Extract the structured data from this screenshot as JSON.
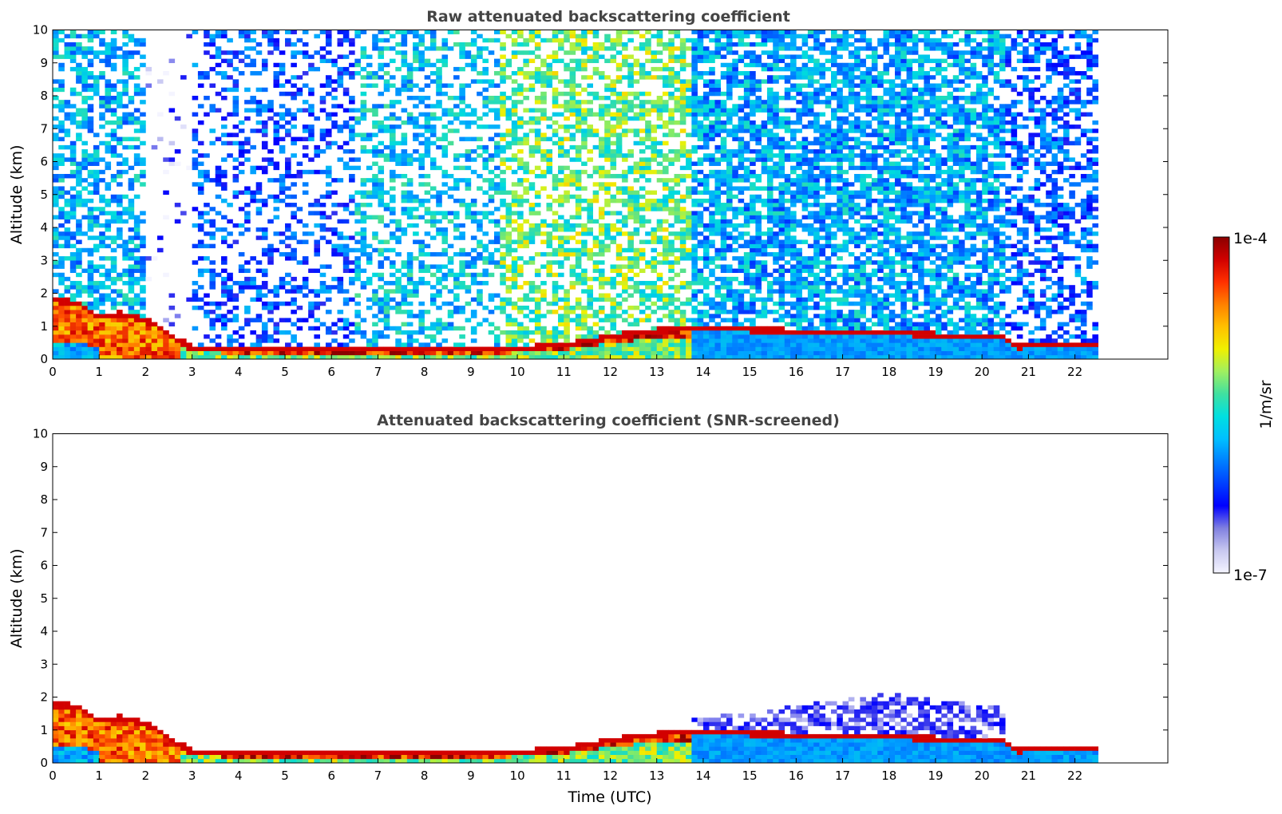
{
  "chart_data": [
    {
      "type": "heatmap",
      "title": "Raw attenuated backscattering coefficient",
      "xlabel": "",
      "ylabel": "Altitude (km)",
      "xlim": [
        0,
        24
      ],
      "ylim": [
        0,
        10
      ],
      "x_ticks": [
        "0",
        "1",
        "2",
        "3",
        "4",
        "5",
        "6",
        "7",
        "8",
        "9",
        "10",
        "11",
        "12",
        "13",
        "14",
        "15",
        "16",
        "17",
        "18",
        "19",
        "20",
        "21",
        "22"
      ],
      "y_ticks": [
        "0",
        "1",
        "2",
        "3",
        "4",
        "5",
        "6",
        "7",
        "8",
        "9",
        "10"
      ],
      "data_time_range": [
        0,
        22.5
      ],
      "boundary_layer_top_km": [
        {
          "t": 0.0,
          "z": 1.7
        },
        {
          "t": 0.5,
          "z": 1.65
        },
        {
          "t": 0.9,
          "z": 1.25
        },
        {
          "t": 1.5,
          "z": 1.3
        },
        {
          "t": 2.0,
          "z": 1.1
        },
        {
          "t": 2.6,
          "z": 0.6
        },
        {
          "t": 3.0,
          "z": 0.25
        },
        {
          "t": 5.0,
          "z": 0.2
        },
        {
          "t": 9.5,
          "z": 0.2
        },
        {
          "t": 11.0,
          "z": 0.35
        },
        {
          "t": 12.0,
          "z": 0.6
        },
        {
          "t": 13.0,
          "z": 0.8
        },
        {
          "t": 13.8,
          "z": 0.85
        },
        {
          "t": 17.0,
          "z": 0.75
        },
        {
          "t": 20.5,
          "z": 0.6
        },
        {
          "t": 20.7,
          "z": 0.3
        },
        {
          "t": 22.5,
          "z": 0.4
        }
      ],
      "grid": false
    },
    {
      "type": "heatmap",
      "title": "Attenuated backscattering coefficient (SNR-screened)",
      "xlabel": "Time (UTC)",
      "ylabel": "Altitude (km)",
      "xlim": [
        0,
        24
      ],
      "ylim": [
        0,
        10
      ],
      "x_ticks": [
        "0",
        "1",
        "2",
        "3",
        "4",
        "5",
        "6",
        "7",
        "8",
        "9",
        "10",
        "11",
        "12",
        "13",
        "14",
        "15",
        "16",
        "17",
        "18",
        "19",
        "20",
        "21",
        "22"
      ],
      "y_ticks": [
        "0",
        "1",
        "2",
        "3",
        "4",
        "5",
        "6",
        "7",
        "8",
        "9",
        "10"
      ],
      "data_time_range": [
        0,
        22.5
      ],
      "grid": false
    }
  ],
  "colorbar": {
    "max_label": "1e-4",
    "min_label": "1e-7",
    "unit_label": "1/m/sr",
    "colors": [
      "#f4f4ff",
      "#c8c8f0",
      "#8080e0",
      "#0000ff",
      "#0040ff",
      "#0080ff",
      "#00c0ff",
      "#00e0e0",
      "#40e0a0",
      "#a0f060",
      "#f0f000",
      "#ffc000",
      "#ff8000",
      "#ff3000",
      "#d00000",
      "#8b0000"
    ]
  }
}
